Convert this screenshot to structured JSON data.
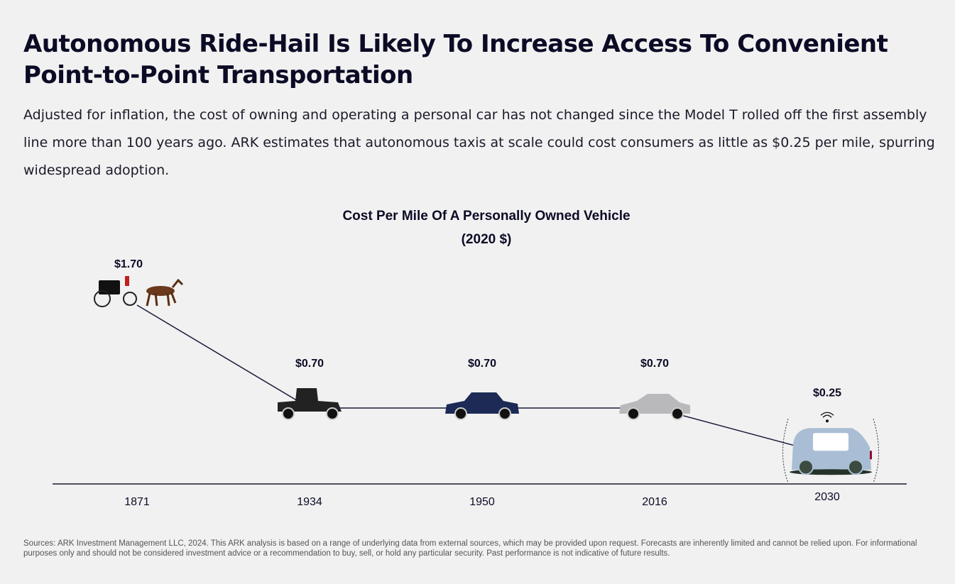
{
  "header": {
    "title": "Autonomous Ride-Hail Is Likely To Increase Access To Convenient Point-to-Point Transportation",
    "subtitle": "Adjusted for inflation, the cost of owning and operating a personal car has not changed since the Model T rolled off the first assembly line more than 100 years ago. ARK estimates that autonomous taxis at scale could cost consumers as little as $0.25 per mile, spurring widespread adoption."
  },
  "chart_data": {
    "type": "line",
    "title": "Cost Per Mile Of A Personally Owned Vehicle",
    "subtitle": "(2020 $)",
    "categories": [
      "1871",
      "1934",
      "1950",
      "2016",
      "2030"
    ],
    "values": [
      1.7,
      0.7,
      0.7,
      0.7,
      0.25
    ],
    "data_labels": [
      "$1.70",
      "$0.70",
      "$0.70",
      "$0.70",
      "$0.25"
    ],
    "markers": [
      "horse-carriage-icon",
      "model-a-car-icon",
      "1950s-sedan-icon",
      "modern-sedan-icon",
      "autonomous-van-icon"
    ],
    "grid": false,
    "line_color": "#1a1a3a",
    "xlabel": "",
    "ylabel": ""
  },
  "footer": {
    "sources": "Sources: ARK Investment Management LLC, 2024. This ARK analysis is based on a range of underlying data from external sources, which may be provided upon request. Forecasts are inherently limited and cannot be relied upon. For informational purposes only and should not be considered investment advice or a recommendation to buy, sell, or hold any particular security. Past performance is not indicative of future results."
  }
}
